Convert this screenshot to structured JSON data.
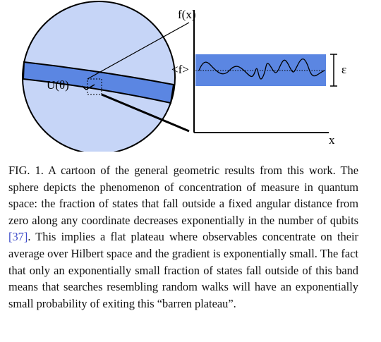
{
  "figure": {
    "labels": {
      "fx": "f(x)",
      "mean": "<f>",
      "epsilon": "ε",
      "x": "x",
      "unitary": "U(θ)"
    }
  },
  "caption": {
    "label": "FIG. 1.",
    "text_before": "A cartoon of the general geometric results from this work. The sphere depicts the phenomenon of concentration of measure in quantum space: the fraction of states that fall outside a fixed angular distance from zero along any coordinate decreases exponentially in the number of qubits",
    "citation": "[37]",
    "text_after": ". This implies a flat plateau where observables concentrate on their average over Hilbert space and the gradient is exponentially small. The fact that only an exponentially small fraction of states fall outside of this band means that searches resembling random walks will have an exponentially small probability of exiting this “barren plateau”."
  }
}
